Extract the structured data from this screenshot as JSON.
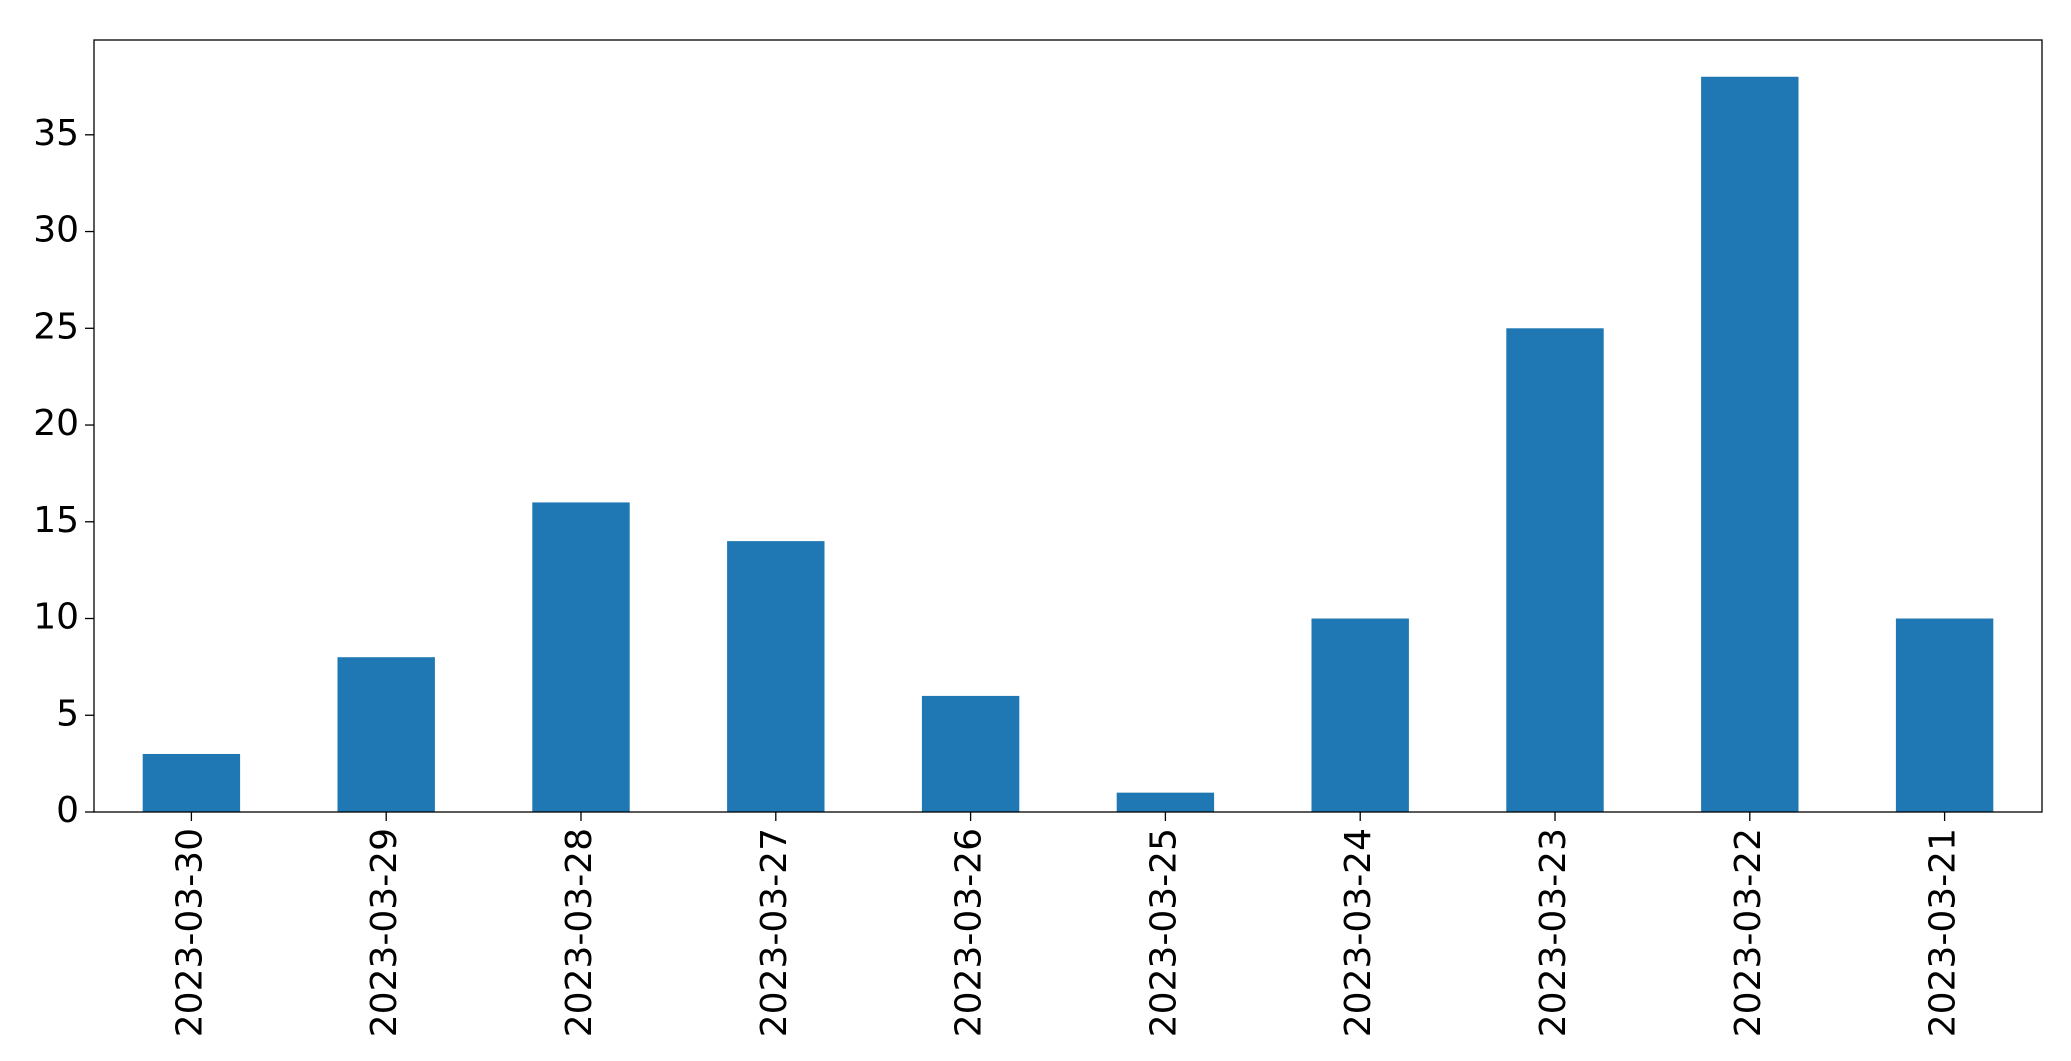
{
  "chart_data": {
    "type": "bar",
    "categories": [
      "2023-03-30",
      "2023-03-29",
      "2023-03-28",
      "2023-03-27",
      "2023-03-26",
      "2023-03-25",
      "2023-03-24",
      "2023-03-23",
      "2023-03-22",
      "2023-03-21"
    ],
    "values": [
      3,
      8,
      16,
      14,
      6,
      1,
      10,
      25,
      38,
      10
    ],
    "color": "#1f77b4",
    "ylim": [
      0,
      39.9
    ],
    "yticks": [
      0,
      5,
      10,
      15,
      20,
      25,
      30,
      35
    ],
    "grid": false
  }
}
